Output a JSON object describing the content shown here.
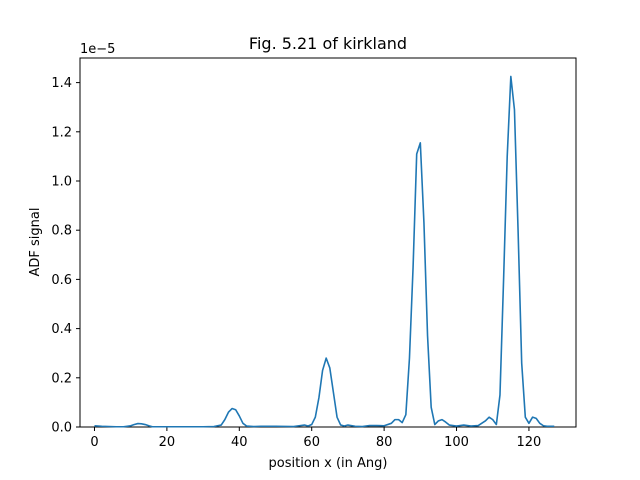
{
  "chart_data": {
    "type": "line",
    "title": "Fig. 5.21 of kirkland",
    "xlabel": "position x (in Ang)",
    "ylabel": "ADF signal",
    "y_offset_label": "1e−5",
    "xlim": [
      -4,
      133
    ],
    "ylim": [
      0,
      1.5
    ],
    "x_ticks": [
      0,
      20,
      40,
      60,
      80,
      100,
      120
    ],
    "x_tick_labels": [
      "0",
      "20",
      "40",
      "60",
      "80",
      "100",
      "120"
    ],
    "y_ticks": [
      0.0,
      0.2,
      0.4,
      0.6,
      0.8,
      1.0,
      1.2,
      1.4
    ],
    "y_tick_labels": [
      "0.0",
      "0.2",
      "0.4",
      "0.6",
      "0.8",
      "1.0",
      "1.2",
      "1.4"
    ],
    "grid": false,
    "line_color": "#1f77b4",
    "series": [
      {
        "x": [
          0,
          2,
          4,
          6,
          8,
          10,
          11,
          12,
          13,
          14,
          15,
          16,
          18,
          20,
          25,
          30,
          33,
          35,
          36,
          37,
          38,
          39,
          40,
          41,
          42,
          44,
          46,
          50,
          55,
          58,
          59,
          60,
          61,
          62,
          63,
          64,
          65,
          66,
          67,
          68,
          69,
          70,
          72,
          74,
          76,
          78,
          80,
          82,
          83,
          84,
          85,
          86,
          87,
          88,
          89,
          90,
          91,
          92,
          93,
          94,
          95,
          96,
          97,
          98,
          100,
          102,
          104,
          106,
          108,
          109,
          110,
          111,
          112,
          113,
          114,
          115,
          116,
          117,
          118,
          119,
          120,
          121,
          122,
          123,
          124,
          125,
          127
        ],
        "y": [
          0.005,
          0.003,
          0.002,
          0.001,
          0.001,
          0.005,
          0.01,
          0.014,
          0.013,
          0.01,
          0.005,
          0.001,
          0.001,
          0.001,
          0.001,
          0.001,
          0.002,
          0.008,
          0.03,
          0.06,
          0.075,
          0.07,
          0.045,
          0.015,
          0.004,
          0.002,
          0.003,
          0.003,
          0.002,
          0.008,
          0.004,
          0.01,
          0.04,
          0.12,
          0.23,
          0.28,
          0.24,
          0.14,
          0.04,
          0.008,
          0.004,
          0.008,
          0.003,
          0.002,
          0.006,
          0.006,
          0.005,
          0.015,
          0.03,
          0.03,
          0.018,
          0.05,
          0.28,
          0.65,
          1.11,
          1.155,
          0.83,
          0.37,
          0.08,
          0.01,
          0.025,
          0.03,
          0.02,
          0.008,
          0.004,
          0.008,
          0.004,
          0.006,
          0.025,
          0.04,
          0.03,
          0.01,
          0.13,
          0.6,
          1.1,
          1.425,
          1.29,
          0.8,
          0.26,
          0.04,
          0.015,
          0.04,
          0.035,
          0.015,
          0.005,
          0.003,
          0.003
        ]
      }
    ]
  }
}
